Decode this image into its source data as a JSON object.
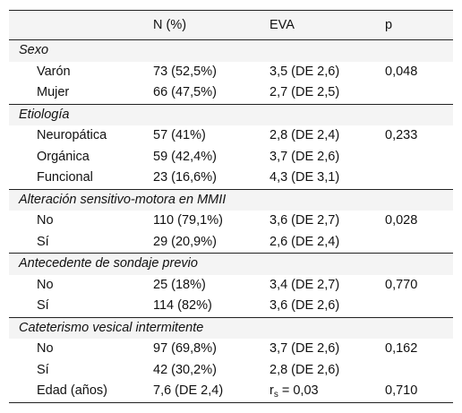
{
  "header": {
    "col0": "",
    "col1": "N (%)",
    "col2": "EVA",
    "col3": "p"
  },
  "sections": [
    {
      "title": "Sexo",
      "rows": [
        {
          "label": "Varón",
          "n": "73 (52,5%)",
          "eva": "3,5 (DE 2,6)",
          "p": "0,048"
        },
        {
          "label": "Mujer",
          "n": "66 (47,5%)",
          "eva": "2,7 (DE 2,5)",
          "p": ""
        }
      ]
    },
    {
      "title": "Etiología",
      "rows": [
        {
          "label": "Neuropática",
          "n": "57 (41%)",
          "eva": "2,8 (DE 2,4)",
          "p": "0,233"
        },
        {
          "label": "Orgánica",
          "n": "59 (42,4%)",
          "eva": "3,7 (DE 2,6)",
          "p": ""
        },
        {
          "label": "Funcional",
          "n": "23 (16,6%)",
          "eva": "4,3 (DE 3,1)",
          "p": ""
        }
      ]
    },
    {
      "title": "Alteración sensitivo-motora en MMII",
      "rows": [
        {
          "label": "No",
          "n": "110 (79,1%)",
          "eva": "3,6 (DE 2,7)",
          "p": "0,028"
        },
        {
          "label": "Sí",
          "n": "29 (20,9%)",
          "eva": "2,6 (DE 2,4)",
          "p": ""
        }
      ]
    },
    {
      "title": "Antecedente de sondaje previo",
      "rows": [
        {
          "label": "No",
          "n": "25 (18%)",
          "eva": "3,4 (DE 2,7)",
          "p": "0,770"
        },
        {
          "label": "Sí",
          "n": "114 (82%)",
          "eva": "3,6 (DE 2,6)",
          "p": ""
        }
      ]
    },
    {
      "title": "Cateterismo vesical intermitente",
      "rows": [
        {
          "label": "No",
          "n": "97 (69,8%)",
          "eva": "3,7 (DE 2,6)",
          "p": "0,162"
        },
        {
          "label": "Sí",
          "n": "42 (30,2%)",
          "eva": "2,8 (DE 2,6)",
          "p": ""
        },
        {
          "label": "Edad (años)",
          "n": "7,6 (DE 2,4)",
          "eva_main": "r",
          "eva_sub": "s",
          "eva_rest": " = 0,03",
          "p": "0,710"
        }
      ]
    }
  ]
}
